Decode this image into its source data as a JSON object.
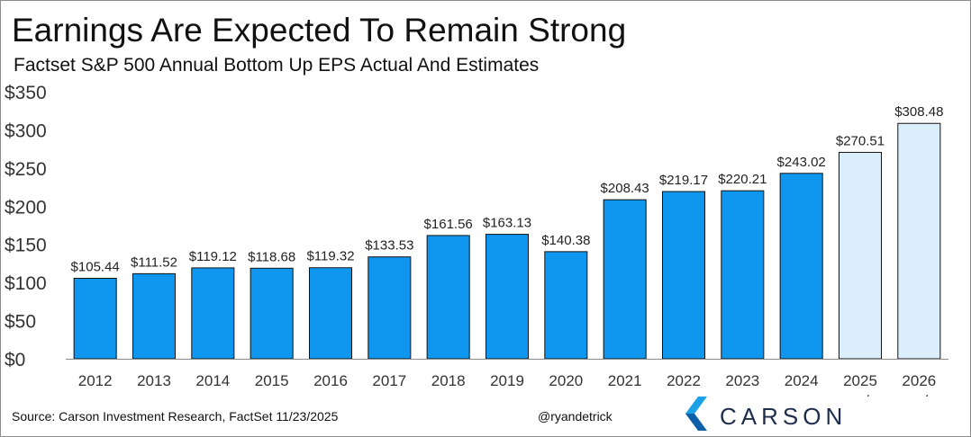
{
  "chart_data": {
    "type": "bar",
    "title": "Earnings Are Expected To Remain Strong",
    "subtitle": "Factset S&P 500 Annual Bottom Up EPS Actual And Estimates",
    "xlabel": "",
    "ylabel": "",
    "ylim": [
      0,
      350
    ],
    "yticks": [
      0,
      50,
      100,
      150,
      200,
      250,
      300,
      350
    ],
    "ytick_labels": [
      "$0",
      "$50",
      "$100",
      "$150",
      "$200",
      "$250",
      "$300",
      "$350"
    ],
    "categories": [
      [
        "2012"
      ],
      [
        "2013"
      ],
      [
        "2014"
      ],
      [
        "2015"
      ],
      [
        "2016"
      ],
      [
        "2017"
      ],
      [
        "2018"
      ],
      [
        "2019"
      ],
      [
        "2020"
      ],
      [
        "2021"
      ],
      [
        "2022"
      ],
      [
        "2023"
      ],
      [
        "2024"
      ],
      [
        "2025",
        "est"
      ],
      [
        "2026",
        "est"
      ]
    ],
    "values": [
      105.44,
      111.52,
      119.12,
      118.68,
      119.32,
      133.53,
      161.56,
      163.13,
      140.38,
      208.43,
      219.17,
      220.21,
      243.02,
      270.51,
      308.48
    ],
    "value_labels": [
      "$105.44",
      "$111.52",
      "$119.12",
      "$118.68",
      "$119.32",
      "$133.53",
      "$161.56",
      "$163.13",
      "$140.38",
      "$208.43",
      "$219.17",
      "$220.21",
      "$243.02",
      "$270.51",
      "$308.48"
    ],
    "bar_kind": [
      "actual",
      "actual",
      "actual",
      "actual",
      "actual",
      "actual",
      "actual",
      "actual",
      "actual",
      "actual",
      "actual",
      "actual",
      "actual",
      "estimate",
      "estimate"
    ],
    "colors": {
      "actual": "#0f97f0",
      "estimate": "#dbeefc",
      "outline": "#111111",
      "axis": "#8c8c8c"
    },
    "grid": false
  },
  "footer": {
    "source": "Source: Carson Investment Research, FactSet 11/23/2025",
    "handle": "@ryandetrick",
    "logo_text": "CARSON",
    "logo_icon": "carson-chevron-icon",
    "logo_colors": [
      "#1aa1e8",
      "#0d5fa8",
      "#1f2d4d"
    ]
  }
}
